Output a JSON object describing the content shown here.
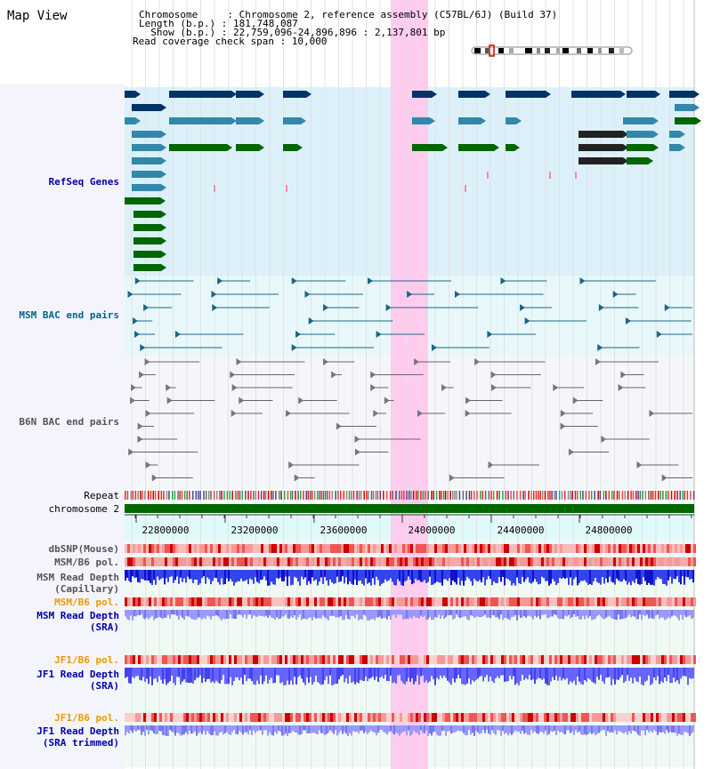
{
  "title": "Map View",
  "header": {
    "chromosome_line": "Chromosome     : Chromosome 2, reference assembly (C57BL/6J) (Build 37)",
    "length_line": "Length (b.p.) : 181,748,087",
    "show_line": "  Show (b.p.) : 22,759,096-24,896,896 : 2,137,801 bp",
    "coverage_line": "Read coverage check span : 10,000"
  },
  "tracks": {
    "refseq": "RefSeq Genes",
    "msm_bac": "MSM BAC end pairs",
    "b6n_bac": "B6N BAC end pairs",
    "repeat": "Repeat",
    "chromosome": "chromosome 2",
    "dbsnp": "dbSNP(Mouse)",
    "msm_b6_pol_1": "MSM/B6 pol.",
    "msm_read_depth_cap_1": "MSM Read Depth",
    "msm_read_depth_cap_2": "(Capillary)",
    "msm_b6_pol_2": "MSM/B6 pol.",
    "msm_read_depth_sra_1": "MSM Read Depth",
    "msm_read_depth_sra_2": "(SRA)",
    "jf1_b6_pol_1": "JF1/B6 pol.",
    "jf1_read_depth_sra_1": "JF1 Read Depth",
    "jf1_read_depth_sra_2": "(SRA)",
    "jf1_b6_pol_2": "JF1/B6 pol.",
    "jf1_read_depth_trim_1": "JF1 Read Depth",
    "jf1_read_depth_trim_2": "(SRA trimmed)"
  },
  "axis": {
    "ticks": [
      "22800000",
      "23200000",
      "23600000",
      "24000000",
      "24400000",
      "24800000"
    ]
  },
  "colors": {
    "dark_blue_label": "#0000aa",
    "teal_label": "#006688",
    "gray_label": "#555555",
    "orange_label": "#ee9900",
    "highlight": "#ffccee",
    "chrom_band": "#006600",
    "gene_dark": "#003366",
    "gene_mid": "#3388aa",
    "gene_green": "#006600"
  }
}
